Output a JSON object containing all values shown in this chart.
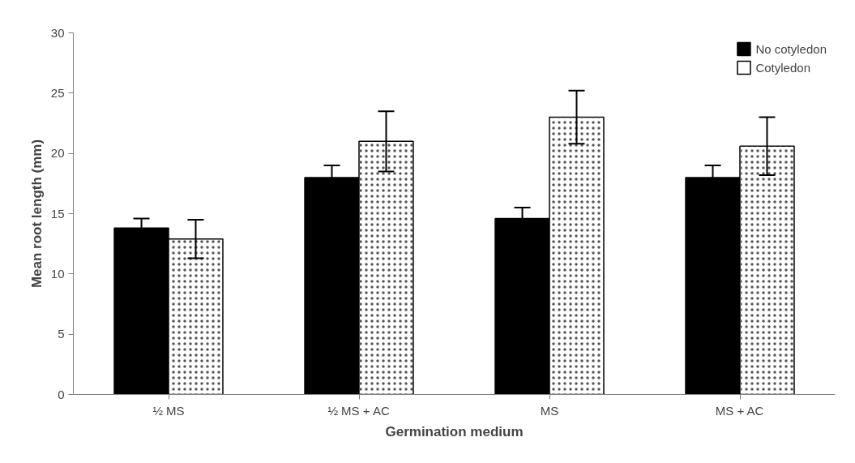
{
  "chart_data": {
    "type": "bar",
    "xlabel": "Germination medium",
    "ylabel": "Mean root length (mm)",
    "categories": [
      "½ MS",
      "½ MS + AC",
      "MS",
      "MS + AC"
    ],
    "series": [
      {
        "name": "No cotyledon",
        "color": "#000000",
        "values": [
          13.8,
          18.0,
          14.6,
          18.0
        ],
        "errors": [
          0.8,
          1.0,
          0.9,
          1.0
        ]
      },
      {
        "name": "Cotyledon",
        "color": "#ffffff",
        "values": [
          12.9,
          21.0,
          23.0,
          20.6
        ],
        "errors": [
          1.6,
          2.5,
          2.2,
          2.4
        ]
      }
    ],
    "ylim": [
      0,
      30
    ],
    "yticks": [
      0,
      5,
      10,
      15,
      20,
      25,
      30
    ],
    "grid": false,
    "legend": "top right"
  }
}
